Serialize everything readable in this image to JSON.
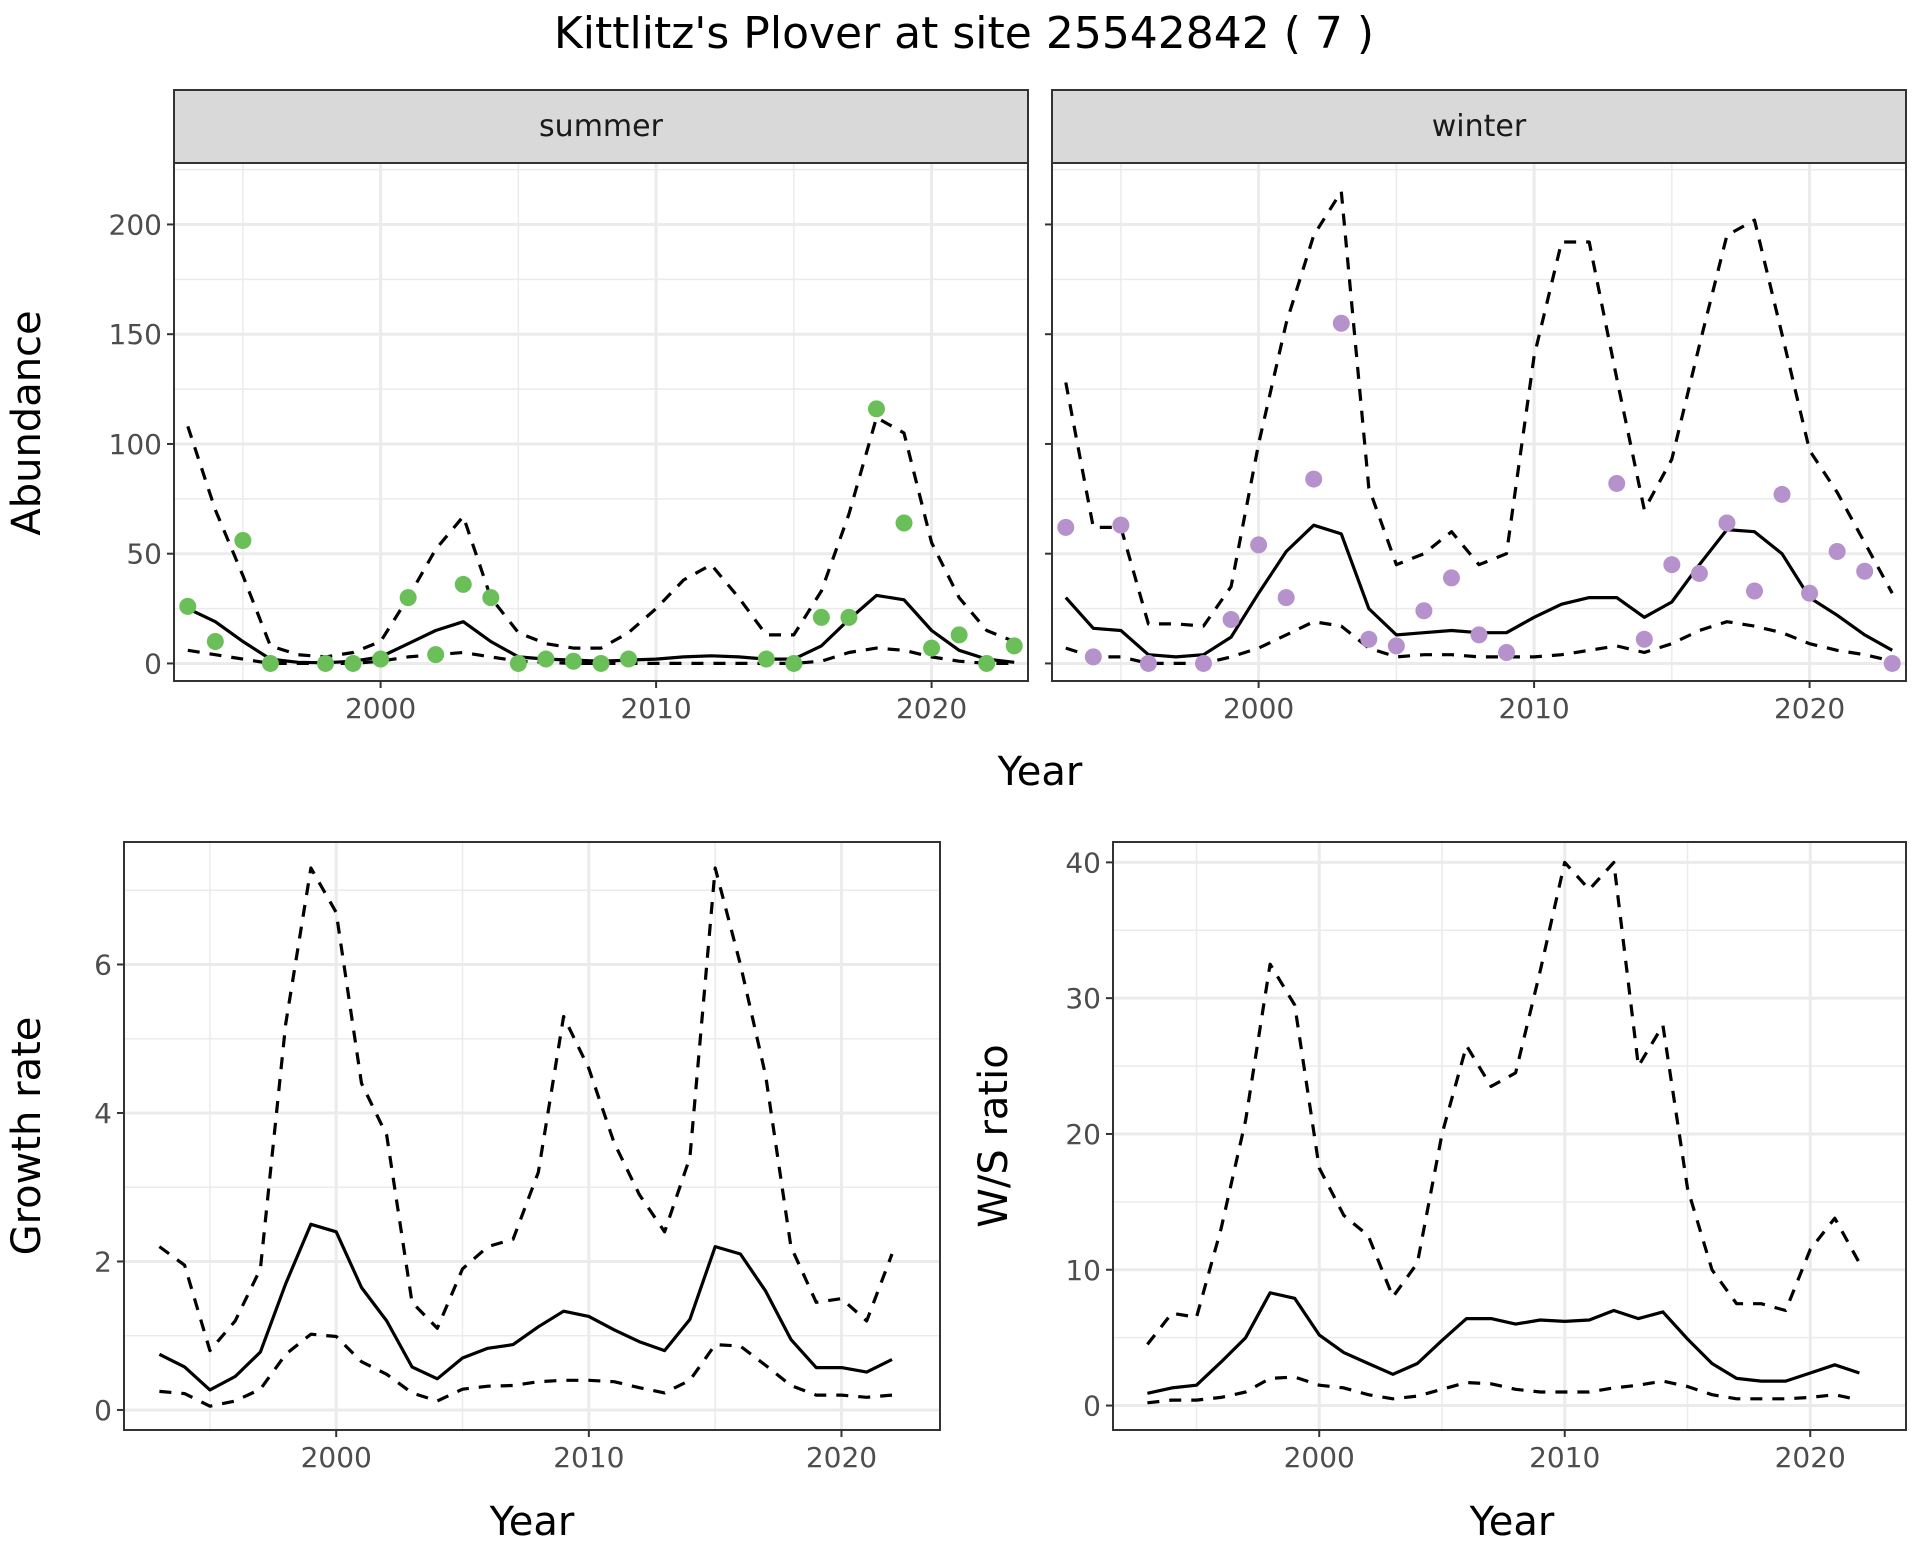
{
  "title": "Kittlitz's Plover at site 25542842 ( 7 )",
  "colors": {
    "summer": "#6abf59",
    "winter": "#b592cb",
    "line": "#000000",
    "strip": "#d9d9d9"
  },
  "chart_data": [
    {
      "type": "line",
      "panel": "summer",
      "xlabel": "Year",
      "ylabel": "Abundance",
      "xlim": [
        1992.5,
        2023.5
      ],
      "ylim": [
        -8,
        228
      ],
      "xticks": [
        2000,
        2010,
        2020
      ],
      "yticks": [
        0,
        50,
        100,
        150,
        200
      ],
      "grid": true,
      "x": [
        1993,
        1994,
        1995,
        1996,
        1997,
        1998,
        1999,
        2000,
        2001,
        2002,
        2003,
        2004,
        2005,
        2006,
        2007,
        2008,
        2009,
        2010,
        2011,
        2012,
        2013,
        2014,
        2015,
        2016,
        2017,
        2018,
        2019,
        2020,
        2021,
        2022,
        2023
      ],
      "upper": [
        108,
        70,
        40,
        8,
        4,
        3,
        5,
        10,
        30,
        52,
        67,
        30,
        14,
        9,
        7,
        7,
        14,
        25,
        38,
        45,
        30,
        13,
        13,
        33,
        68,
        112,
        105,
        55,
        30,
        15,
        10
      ],
      "mid": [
        25,
        19,
        10,
        2,
        0.5,
        0.3,
        1,
        3,
        9,
        15,
        19,
        10,
        3,
        2,
        1.5,
        1,
        1.5,
        2,
        3,
        3.5,
        3,
        2,
        2,
        8,
        20,
        31,
        29,
        15,
        6,
        2,
        0.5
      ],
      "lower": [
        6,
        4,
        2,
        0,
        0,
        0,
        0,
        1,
        3,
        4,
        5,
        3,
        1,
        0.5,
        0,
        0,
        0,
        0,
        0,
        0,
        0,
        0,
        0,
        1,
        5,
        7,
        6,
        3,
        1,
        0,
        0
      ],
      "points": {
        "x": [
          1993,
          1994,
          1995,
          1996,
          1998,
          1999,
          2000,
          2001,
          2002,
          2003,
          2004,
          2005,
          2006,
          2007,
          2008,
          2009,
          2014,
          2015,
          2016,
          2017,
          2018,
          2019,
          2020,
          2021,
          2022,
          2023
        ],
        "y": [
          26,
          10,
          56,
          0,
          0,
          0,
          2,
          30,
          4,
          36,
          30,
          0,
          2,
          1,
          0,
          2,
          2,
          0,
          21,
          21,
          116,
          64,
          7,
          13,
          0,
          8
        ]
      }
    },
    {
      "type": "line",
      "panel": "winter",
      "xlabel": "Year",
      "ylabel": "Abundance",
      "xlim": [
        1992.5,
        2023.5
      ],
      "ylim": [
        -8,
        228
      ],
      "xticks": [
        2000,
        2010,
        2020
      ],
      "yticks": [
        0,
        50,
        100,
        150,
        200
      ],
      "grid": true,
      "x": [
        1993,
        1994,
        1995,
        1996,
        1997,
        1998,
        1999,
        2000,
        2001,
        2002,
        2003,
        2004,
        2005,
        2006,
        2007,
        2008,
        2009,
        2010,
        2011,
        2012,
        2013,
        2014,
        2015,
        2016,
        2017,
        2018,
        2019,
        2020,
        2021,
        2022,
        2023
      ],
      "upper": [
        128,
        62,
        62,
        18,
        18,
        17,
        35,
        100,
        155,
        195,
        215,
        80,
        45,
        50,
        60,
        45,
        50,
        140,
        192,
        192,
        130,
        70,
        93,
        145,
        195,
        202,
        150,
        97,
        78,
        55,
        32
      ],
      "mid": [
        30,
        16,
        15,
        4,
        3,
        4,
        12,
        32,
        51,
        63,
        59,
        25,
        13,
        14,
        15,
        14,
        14,
        21,
        27,
        30,
        30,
        21,
        28,
        45,
        61,
        60,
        50,
        30,
        22,
        13,
        6
      ],
      "lower": [
        7,
        3,
        3,
        0,
        0,
        0,
        3,
        7,
        13,
        19,
        17,
        7,
        3,
        4,
        4,
        3,
        3,
        3,
        4,
        6,
        8,
        5,
        9,
        15,
        19,
        17,
        14,
        9,
        6,
        4,
        1
      ],
      "points": {
        "x": [
          1993,
          1994,
          1995,
          1996,
          1998,
          1999,
          2000,
          2001,
          2002,
          2003,
          2004,
          2005,
          2006,
          2007,
          2008,
          2009,
          2013,
          2014,
          2015,
          2016,
          2017,
          2018,
          2019,
          2020,
          2021,
          2022,
          2023
        ],
        "y": [
          62,
          3,
          63,
          0,
          0,
          20,
          54,
          30,
          84,
          155,
          11,
          8,
          24,
          39,
          13,
          5,
          82,
          11,
          45,
          41,
          64,
          33,
          77,
          32,
          51,
          42,
          0
        ]
      }
    },
    {
      "type": "line",
      "panel": "growth",
      "xlabel": "Year",
      "ylabel": "Growth rate",
      "xlim": [
        1991.6,
        2023.9
      ],
      "ylim": [
        -0.27,
        7.65
      ],
      "xticks": [
        2000,
        2010,
        2020
      ],
      "yticks": [
        0,
        2,
        4,
        6
      ],
      "grid": true,
      "x": [
        1993,
        1994,
        1995,
        1996,
        1997,
        1998,
        1999,
        2000,
        2001,
        2002,
        2003,
        2004,
        2005,
        2006,
        2007,
        2008,
        2009,
        2010,
        2011,
        2012,
        2013,
        2014,
        2015,
        2016,
        2017,
        2018,
        2019,
        2020,
        2021,
        2022
      ],
      "upper": [
        2.2,
        1.95,
        0.8,
        1.2,
        1.9,
        5.2,
        7.3,
        6.7,
        4.4,
        3.7,
        1.45,
        1.1,
        1.9,
        2.2,
        2.3,
        3.2,
        5.3,
        4.6,
        3.6,
        2.9,
        2.4,
        3.4,
        7.3,
        6.0,
        4.5,
        2.2,
        1.45,
        1.5,
        1.2,
        2.1
      ],
      "mid": [
        0.75,
        0.58,
        0.27,
        0.45,
        0.78,
        1.7,
        2.5,
        2.4,
        1.65,
        1.2,
        0.58,
        0.42,
        0.7,
        0.83,
        0.88,
        1.12,
        1.33,
        1.26,
        1.08,
        0.92,
        0.8,
        1.22,
        2.2,
        2.1,
        1.6,
        0.95,
        0.57,
        0.57,
        0.51,
        0.68
      ],
      "lower": [
        0.25,
        0.22,
        0.05,
        0.12,
        0.28,
        0.75,
        1.02,
        0.99,
        0.65,
        0.48,
        0.23,
        0.12,
        0.28,
        0.32,
        0.33,
        0.38,
        0.4,
        0.4,
        0.38,
        0.3,
        0.23,
        0.4,
        0.88,
        0.86,
        0.6,
        0.33,
        0.2,
        0.2,
        0.17,
        0.2
      ]
    },
    {
      "type": "line",
      "panel": "ratio",
      "xlabel": "Year",
      "ylabel": "W/S ratio",
      "xlim": [
        1991.6,
        2023.9
      ],
      "ylim": [
        -1.8,
        41.5
      ],
      "xticks": [
        2000,
        2010,
        2020
      ],
      "yticks": [
        0,
        10,
        20,
        30,
        40
      ],
      "grid": true,
      "x": [
        1993,
        1994,
        1995,
        1996,
        1997,
        1998,
        1999,
        2000,
        2001,
        2002,
        2003,
        2004,
        2005,
        2006,
        2007,
        2008,
        2009,
        2010,
        2011,
        2012,
        2013,
        2014,
        2015,
        2016,
        2017,
        2018,
        2019,
        2020,
        2021,
        2022
      ],
      "upper": [
        4.5,
        6.8,
        6.5,
        13,
        21,
        32.5,
        29.5,
        17.5,
        14,
        12.5,
        8,
        10.5,
        20,
        26.5,
        23.5,
        24.5,
        32,
        40,
        38,
        40,
        25,
        28,
        16,
        10,
        7.5,
        7.5,
        7,
        11.5,
        13.8,
        10.5
      ],
      "mid": [
        0.9,
        1.3,
        1.5,
        3.2,
        5,
        8.3,
        7.9,
        5.2,
        3.9,
        3.1,
        2.3,
        3.1,
        4.8,
        6.4,
        6.4,
        6,
        6.3,
        6.2,
        6.3,
        7,
        6.4,
        6.9,
        4.9,
        3.1,
        2,
        1.8,
        1.8,
        2.4,
        3,
        2.4
      ],
      "lower": [
        0.2,
        0.4,
        0.4,
        0.6,
        1,
        2,
        2.1,
        1.5,
        1.3,
        0.8,
        0.5,
        0.7,
        1.2,
        1.7,
        1.6,
        1.2,
        1,
        1,
        1,
        1.3,
        1.5,
        1.8,
        1.4,
        0.8,
        0.5,
        0.5,
        0.5,
        0.6,
        0.8,
        0.4
      ]
    }
  ]
}
